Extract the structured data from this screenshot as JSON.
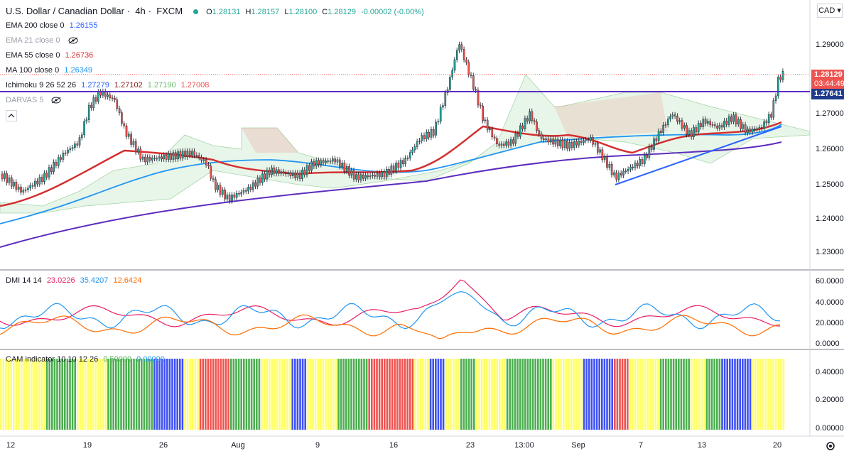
{
  "header": {
    "symbol": "U.S. Dollar / Canadian Dollar",
    "timeframe": "4h",
    "exchange": "FXCM",
    "ohlc": {
      "open_label": "O",
      "open": "1.28131",
      "high_label": "H",
      "high": "1.28157",
      "low_label": "L",
      "low": "1.28100",
      "close_label": "C",
      "close": "1.28129",
      "change": "-0.00002 (-0.00%)"
    }
  },
  "currency": "CAD",
  "indicators": [
    {
      "name": "EMA 200 close 0",
      "value": "1.26155",
      "color": "#2962ff",
      "hidden": false
    },
    {
      "name": "EMA 21 close 0",
      "value": "",
      "color": "#999ea8",
      "hidden": true
    },
    {
      "name": "EMA 55 close 0",
      "value": "1.26736",
      "color": "#d32f2f",
      "hidden": false
    },
    {
      "name": "MA 100 close 0",
      "value": "1.26349",
      "color": "#2196f3",
      "hidden": false
    },
    {
      "name": "Ichimoku 9 26 52 26",
      "values": [
        "1.27279",
        "1.27102",
        "1.27190",
        "1.27008"
      ],
      "colors": [
        "#2962ff",
        "#8b1a1a",
        "#66bb6a",
        "#ef5350"
      ],
      "hidden": false
    },
    {
      "name": "DARVAS 5",
      "value": "",
      "color": "#999ea8",
      "hidden": true
    }
  ],
  "price_axis": {
    "ticks": [
      "1.29000",
      "1.28000",
      "1.27000",
      "1.26000",
      "1.25000",
      "1.24000",
      "1.23000"
    ],
    "last_price": "1.28129",
    "countdown": "03:44:49",
    "horizontal_line_price": "1.27641"
  },
  "dmi": {
    "label": "DMI 14 14",
    "values": [
      "23.0226",
      "35.4207",
      "12.6424"
    ],
    "colors": [
      "#e91e63",
      "#2196f3",
      "#ff6d00"
    ],
    "ticks": [
      "60.0000",
      "40.0000",
      "20.0000",
      "0.0000"
    ]
  },
  "cam": {
    "label": "CAM indicator 10 10 12 26",
    "values": [
      "0.50000",
      "0.00000"
    ],
    "ticks": [
      "0.40000",
      "0.20000",
      "0.00000"
    ]
  },
  "time_axis": [
    "12",
    "19",
    "26",
    "Aug",
    "9",
    "16",
    "23",
    "13:00",
    "Sep",
    "7",
    "13",
    "20"
  ],
  "colors": {
    "up_candle": "#26a69a",
    "down_candle": "#ef5350",
    "ema200": "#5b2cbf",
    "ema55": "#d32f2f",
    "ma100": "#2196f3",
    "hline": "#5b2cbf",
    "last_price_bg": "#ef5350",
    "hline_bg": "#1e3a8a",
    "cam_green": "#4caf50",
    "cam_yellow": "#ffff66",
    "cam_blue": "#3f51f5",
    "cam_red": "#ef5350"
  }
}
